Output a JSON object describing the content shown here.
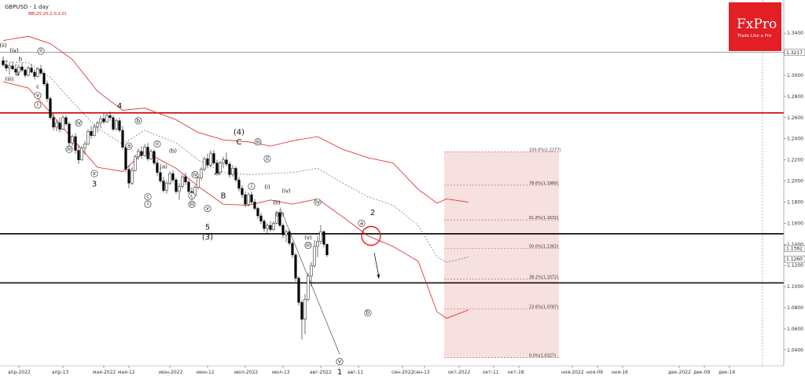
{
  "header": {
    "symbol": "GBPUSD - 1 day",
    "indicator": "BB(20,20,2.0,2,0)"
  },
  "logo": {
    "brand": "FxPro",
    "tagline": "Trade Like a Pro",
    "color": "#e31e24"
  },
  "price_labels": {
    "top_level": "1.3217",
    "current_bid": "1.1362",
    "current_low": "1.1260"
  },
  "fib_box_color": "#f4d6d6",
  "colors": {
    "bull": "#ffffff",
    "bear": "#000000",
    "bollinger": "#e02020",
    "resistance": "#cc0000",
    "support": "#000000",
    "circle": "#e02020"
  },
  "chart_data": {
    "type": "candlestick",
    "title": "GBPUSD - 1 day",
    "indicator": "BB(20,20,2.0,2,0)",
    "y_ticks": [
      "1.3400",
      "1.3200",
      "1.3000",
      "1.2800",
      "1.2600",
      "1.2400",
      "1.2200",
      "1.2000",
      "1.1800",
      "1.1600",
      "1.1400",
      "1.1200",
      "1.1000",
      "1.0800",
      "1.0600",
      "1.0400"
    ],
    "x_ticks": [
      "апр-2022",
      "апр-13",
      "мая-2022",
      "мая-12",
      "июн-2022",
      "июн-12",
      "июл-2022",
      "июл-13",
      "авг-2022",
      "авг-11",
      "сен-2022",
      "сен-13",
      "окт-2022",
      "окт-11",
      "окт-18",
      "ноя-2022",
      "ноя-09",
      "ноя-16",
      "дек-2022",
      "дек-09",
      "дек-16"
    ],
    "ylim": [
      1.025,
      1.355
    ],
    "horizontal_lines": [
      {
        "price": 1.3217,
        "style": "thin",
        "color": "#555555"
      },
      {
        "price": 1.2645,
        "style": "thick",
        "color": "#cc0000"
      },
      {
        "price": 1.15,
        "style": "thick",
        "color": "#000000"
      },
      {
        "price": 1.1035,
        "style": "thick",
        "color": "#000000"
      }
    ],
    "fibonacci": [
      {
        "label": "100.0%(1.2277)",
        "price": 1.2277
      },
      {
        "label": "78.6%(1.1960)",
        "price": 1.196
      },
      {
        "label": "61.8%(1.1632)",
        "price": 1.1632
      },
      {
        "label": "50.0%(1.1362)",
        "price": 1.1362
      },
      {
        "label": "38.2%(1.1072)",
        "price": 1.1072
      },
      {
        "label": "23.6%(1.0787)",
        "price": 1.0787
      },
      {
        "label": "0.0%(1.0327)",
        "price": 1.0327
      }
    ],
    "candles": [
      [
        1.314,
        1.318,
        1.308,
        1.31
      ],
      [
        1.31,
        1.315,
        1.304,
        1.307
      ],
      [
        1.307,
        1.312,
        1.301,
        1.309
      ],
      [
        1.309,
        1.313,
        1.305,
        1.306
      ],
      [
        1.306,
        1.311,
        1.3,
        1.303
      ],
      [
        1.303,
        1.31,
        1.3,
        1.308
      ],
      [
        1.308,
        1.312,
        1.303,
        1.305
      ],
      [
        1.305,
        1.307,
        1.298,
        1.3
      ],
      [
        1.3,
        1.309,
        1.299,
        1.307
      ],
      [
        1.307,
        1.311,
        1.302,
        1.303
      ],
      [
        1.303,
        1.306,
        1.296,
        1.299
      ],
      [
        1.299,
        1.308,
        1.298,
        1.306
      ],
      [
        1.306,
        1.31,
        1.3,
        1.302
      ],
      [
        1.302,
        1.304,
        1.29,
        1.292
      ],
      [
        1.292,
        1.295,
        1.275,
        1.278
      ],
      [
        1.278,
        1.28,
        1.258,
        1.26
      ],
      [
        1.26,
        1.264,
        1.248,
        1.251
      ],
      [
        1.251,
        1.258,
        1.247,
        1.255
      ],
      [
        1.255,
        1.26,
        1.246,
        1.249
      ],
      [
        1.249,
        1.262,
        1.248,
        1.26
      ],
      [
        1.26,
        1.262,
        1.252,
        1.254
      ],
      [
        1.254,
        1.256,
        1.233,
        1.236
      ],
      [
        1.236,
        1.244,
        1.233,
        1.242
      ],
      [
        1.242,
        1.245,
        1.226,
        1.229
      ],
      [
        1.229,
        1.234,
        1.216,
        1.22
      ],
      [
        1.22,
        1.233,
        1.219,
        1.231
      ],
      [
        1.231,
        1.238,
        1.225,
        1.235
      ],
      [
        1.235,
        1.249,
        1.234,
        1.247
      ],
      [
        1.247,
        1.252,
        1.24,
        1.243
      ],
      [
        1.243,
        1.254,
        1.242,
        1.251
      ],
      [
        1.251,
        1.257,
        1.246,
        1.255
      ],
      [
        1.255,
        1.262,
        1.25,
        1.259
      ],
      [
        1.259,
        1.264,
        1.254,
        1.256
      ],
      [
        1.256,
        1.264,
        1.255,
        1.262
      ],
      [
        1.262,
        1.266,
        1.257,
        1.26
      ],
      [
        1.26,
        1.262,
        1.247,
        1.249
      ],
      [
        1.249,
        1.259,
        1.248,
        1.257
      ],
      [
        1.257,
        1.26,
        1.246,
        1.248
      ],
      [
        1.248,
        1.252,
        1.23,
        1.232
      ],
      [
        1.232,
        1.235,
        1.208,
        1.211
      ],
      [
        1.211,
        1.215,
        1.193,
        1.198
      ],
      [
        1.198,
        1.213,
        1.196,
        1.21
      ],
      [
        1.21,
        1.225,
        1.209,
        1.223
      ],
      [
        1.223,
        1.231,
        1.22,
        1.228
      ],
      [
        1.228,
        1.233,
        1.221,
        1.224
      ],
      [
        1.224,
        1.235,
        1.223,
        1.232
      ],
      [
        1.232,
        1.236,
        1.219,
        1.221
      ],
      [
        1.221,
        1.23,
        1.22,
        1.228
      ],
      [
        1.228,
        1.23,
        1.215,
        1.217
      ],
      [
        1.217,
        1.22,
        1.205,
        1.208
      ],
      [
        1.208,
        1.213,
        1.198,
        1.2
      ],
      [
        1.2,
        1.204,
        1.189,
        1.191
      ],
      [
        1.191,
        1.2,
        1.188,
        1.198
      ],
      [
        1.198,
        1.209,
        1.196,
        1.207
      ],
      [
        1.207,
        1.21,
        1.199,
        1.201
      ],
      [
        1.201,
        1.203,
        1.188,
        1.19
      ],
      [
        1.19,
        1.198,
        1.182,
        1.195
      ],
      [
        1.195,
        1.206,
        1.193,
        1.204
      ],
      [
        1.204,
        1.208,
        1.196,
        1.199
      ],
      [
        1.199,
        1.201,
        1.188,
        1.19
      ],
      [
        1.19,
        1.194,
        1.182,
        1.186
      ],
      [
        1.186,
        1.196,
        1.185,
        1.194
      ],
      [
        1.194,
        1.205,
        1.192,
        1.203
      ],
      [
        1.203,
        1.213,
        1.201,
        1.211
      ],
      [
        1.211,
        1.223,
        1.209,
        1.221
      ],
      [
        1.221,
        1.226,
        1.212,
        1.215
      ],
      [
        1.215,
        1.229,
        1.213,
        1.226
      ],
      [
        1.226,
        1.229,
        1.215,
        1.217
      ],
      [
        1.217,
        1.22,
        1.205,
        1.208
      ],
      [
        1.208,
        1.219,
        1.206,
        1.217
      ],
      [
        1.217,
        1.223,
        1.212,
        1.22
      ],
      [
        1.22,
        1.227,
        1.214,
        1.216
      ],
      [
        1.216,
        1.218,
        1.203,
        1.206
      ],
      [
        1.206,
        1.215,
        1.204,
        1.212
      ],
      [
        1.212,
        1.214,
        1.199,
        1.201
      ],
      [
        1.201,
        1.204,
        1.19,
        1.193
      ],
      [
        1.193,
        1.196,
        1.184,
        1.187
      ],
      [
        1.187,
        1.19,
        1.175,
        1.178
      ],
      [
        1.178,
        1.189,
        1.176,
        1.187
      ],
      [
        1.187,
        1.19,
        1.178,
        1.18
      ],
      [
        1.18,
        1.183,
        1.172,
        1.174
      ],
      [
        1.174,
        1.176,
        1.164,
        1.167
      ],
      [
        1.167,
        1.17,
        1.159,
        1.162
      ],
      [
        1.162,
        1.164,
        1.152,
        1.155
      ],
      [
        1.155,
        1.16,
        1.15,
        1.158
      ],
      [
        1.158,
        1.162,
        1.152,
        1.154
      ],
      [
        1.154,
        1.162,
        1.153,
        1.16
      ],
      [
        1.16,
        1.172,
        1.159,
        1.17
      ],
      [
        1.17,
        1.173,
        1.156,
        1.158
      ],
      [
        1.158,
        1.16,
        1.146,
        1.149
      ],
      [
        1.149,
        1.154,
        1.142,
        1.152
      ],
      [
        1.152,
        1.154,
        1.139,
        1.141
      ],
      [
        1.141,
        1.143,
        1.127,
        1.13
      ],
      [
        1.13,
        1.132,
        1.105,
        1.108
      ],
      [
        1.108,
        1.11,
        1.082,
        1.085
      ],
      [
        1.085,
        1.087,
        1.05,
        1.069
      ],
      [
        1.069,
        1.093,
        1.055,
        1.088
      ],
      [
        1.088,
        1.113,
        1.086,
        1.11
      ],
      [
        1.11,
        1.123,
        1.1,
        1.12
      ],
      [
        1.12,
        1.144,
        1.118,
        1.138
      ],
      [
        1.138,
        1.148,
        1.128,
        1.143
      ],
      [
        1.143,
        1.158,
        1.14,
        1.152
      ],
      [
        1.152,
        1.153,
        1.137,
        1.14
      ],
      [
        1.14,
        1.141,
        1.128,
        1.13
      ]
    ],
    "bollinger_upper": [
      [
        0,
        1.333
      ],
      [
        8,
        1.337
      ],
      [
        15,
        1.33
      ],
      [
        22,
        1.315
      ],
      [
        30,
        1.285
      ],
      [
        38,
        1.267
      ],
      [
        45,
        1.269
      ],
      [
        55,
        1.258
      ],
      [
        62,
        1.246
      ],
      [
        70,
        1.239
      ],
      [
        78,
        1.237
      ],
      [
        85,
        1.233
      ],
      [
        92,
        1.238
      ],
      [
        100,
        1.242
      ],
      [
        108,
        1.23
      ],
      [
        116,
        1.222
      ],
      [
        124,
        1.217
      ],
      [
        132,
        1.192
      ],
      [
        138,
        1.179
      ],
      [
        141,
        1.183
      ],
      [
        148,
        1.18
      ]
    ],
    "bollinger_lower": [
      [
        0,
        1.294
      ],
      [
        8,
        1.288
      ],
      [
        15,
        1.265
      ],
      [
        22,
        1.24
      ],
      [
        30,
        1.213
      ],
      [
        38,
        1.209
      ],
      [
        45,
        1.228
      ],
      [
        55,
        1.212
      ],
      [
        62,
        1.195
      ],
      [
        70,
        1.178
      ],
      [
        78,
        1.177
      ],
      [
        85,
        1.182
      ],
      [
        92,
        1.178
      ],
      [
        100,
        1.183
      ],
      [
        108,
        1.166
      ],
      [
        116,
        1.148
      ],
      [
        124,
        1.138
      ],
      [
        132,
        1.124
      ],
      [
        138,
        1.076
      ],
      [
        141,
        1.07
      ],
      [
        148,
        1.078
      ]
    ],
    "bollinger_mid": [
      [
        0,
        1.313
      ],
      [
        8,
        1.312
      ],
      [
        15,
        1.298
      ],
      [
        22,
        1.275
      ],
      [
        30,
        1.25
      ],
      [
        38,
        1.235
      ],
      [
        45,
        1.248
      ],
      [
        55,
        1.236
      ],
      [
        62,
        1.22
      ],
      [
        70,
        1.208
      ],
      [
        78,
        1.206
      ],
      [
        85,
        1.207
      ],
      [
        92,
        1.208
      ],
      [
        100,
        1.212
      ],
      [
        108,
        1.198
      ],
      [
        116,
        1.185
      ],
      [
        124,
        1.177
      ],
      [
        132,
        1.158
      ],
      [
        138,
        1.128
      ],
      [
        141,
        1.123
      ],
      [
        148,
        1.128
      ]
    ],
    "waves": [
      {
        "label": "(ii)",
        "idx": 0,
        "price": 1.329,
        "circled": false,
        "size": "sm"
      },
      {
        "label": "b",
        "idx": 1,
        "price": 1.309,
        "circled": false,
        "size": "sm"
      },
      {
        "label": "(iii)",
        "idx": 2,
        "price": 1.297,
        "circled": false,
        "size": "sm"
      },
      {
        "label": "(iv)",
        "idx": 3.5,
        "price": 1.324,
        "circled": false,
        "size": "sm"
      },
      {
        "label": "a",
        "idx": 4.5,
        "price": 1.302,
        "circled": false,
        "size": "sm"
      },
      {
        "label": "b",
        "idx": 5.5,
        "price": 1.316,
        "circled": false,
        "size": "sm"
      },
      {
        "label": "c",
        "idx": 11,
        "price": 1.29,
        "circled": false,
        "size": "sm"
      },
      {
        "label": "v",
        "idx": 11,
        "price": 1.281,
        "circled": true,
        "size": "sm"
      },
      {
        "label": "i",
        "idx": 11,
        "price": 1.272,
        "circled": true,
        "size": "sm"
      },
      {
        "label": "ii",
        "idx": 12,
        "price": 1.323,
        "circled": true,
        "size": "sm"
      },
      {
        "label": "iv",
        "idx": 24,
        "price": 1.255,
        "circled": true,
        "size": "sm"
      },
      {
        "label": "iii",
        "idx": 21,
        "price": 1.23,
        "circled": true,
        "size": "sm"
      },
      {
        "label": "v",
        "idx": 29,
        "price": 1.207,
        "circled": true,
        "size": "sm"
      },
      {
        "label": "3",
        "idx": 29,
        "price": 1.197,
        "circled": false,
        "size": "big"
      },
      {
        "label": "4",
        "idx": 37,
        "price": 1.271,
        "circled": false,
        "size": "big"
      },
      {
        "label": "b",
        "idx": 43,
        "price": 1.257,
        "circled": true,
        "size": "sm"
      },
      {
        "label": "a",
        "idx": 40,
        "price": 1.233,
        "circled": true,
        "size": "sm"
      },
      {
        "label": "c",
        "idx": 46,
        "price": 1.185,
        "circled": true,
        "size": "sm"
      },
      {
        "label": "ii",
        "idx": 49,
        "price": 1.235,
        "circled": true,
        "size": "sm"
      },
      {
        "label": "i",
        "idx": 46,
        "price": 1.178,
        "circled": true,
        "size": "sm"
      },
      {
        "label": "(a)",
        "idx": 51,
        "price": 1.214,
        "circled": false,
        "size": "sm"
      },
      {
        "label": "(b)",
        "idx": 54,
        "price": 1.229,
        "circled": false,
        "size": "sm"
      },
      {
        "label": "iv",
        "idx": 61,
        "price": 1.206,
        "circled": true,
        "size": "sm"
      },
      {
        "label": "c",
        "idx": 60,
        "price": 1.186,
        "circled": true,
        "size": "sm"
      },
      {
        "label": "iii",
        "idx": 60,
        "price": 1.178,
        "circled": true,
        "size": "sm"
      },
      {
        "label": "v",
        "idx": 65,
        "price": 1.174,
        "circled": true,
        "size": "sm"
      },
      {
        "label": "5",
        "idx": 65,
        "price": 1.156,
        "circled": false,
        "size": "big"
      },
      {
        "label": "(3)",
        "idx": 65,
        "price": 1.147,
        "circled": false,
        "size": "big"
      },
      {
        "label": "A",
        "idx": 68,
        "price": 1.208,
        "circled": false,
        "size": "big"
      },
      {
        "label": "B",
        "idx": 70,
        "price": 1.186,
        "circled": false,
        "size": "big"
      },
      {
        "label": "(4)",
        "idx": 75,
        "price": 1.246,
        "circled": false,
        "size": "big"
      },
      {
        "label": "C",
        "idx": 75,
        "price": 1.237,
        "circled": false,
        "size": "big"
      },
      {
        "label": "iii",
        "idx": 81,
        "price": 1.237,
        "circled": true,
        "size": "sm"
      },
      {
        "label": "ii",
        "idx": 84,
        "price": 1.221,
        "circled": true,
        "size": "sm"
      },
      {
        "label": "i",
        "idx": 79,
        "price": 1.195,
        "circled": true,
        "size": "sm"
      },
      {
        "label": "(i)",
        "idx": 84,
        "price": 1.195,
        "circled": false,
        "size": "sm"
      },
      {
        "label": "(ii)",
        "idx": 87,
        "price": 1.18,
        "circled": false,
        "size": "sm"
      },
      {
        "label": "(iv)",
        "idx": 90,
        "price": 1.191,
        "circled": false,
        "size": "sm"
      },
      {
        "label": "(iii)",
        "idx": 88,
        "price": 1.169,
        "circled": false,
        "size": "sm"
      },
      {
        "label": "iv",
        "idx": 100,
        "price": 1.18,
        "circled": true,
        "size": "sm"
      },
      {
        "label": "(v)",
        "idx": 97,
        "price": 1.147,
        "circled": false,
        "size": "sm"
      },
      {
        "label": "iii",
        "idx": 97,
        "price": 1.139,
        "circled": true,
        "size": "sm"
      },
      {
        "label": "v",
        "idx": 107,
        "price": 1.029,
        "circled": true,
        "size": "sm"
      },
      {
        "label": "1",
        "idx": 107,
        "price": 1.019,
        "circled": false,
        "size": "big"
      },
      {
        "label": "a",
        "idx": 114,
        "price": 1.16,
        "circled": true,
        "size": "sm"
      },
      {
        "label": "2",
        "idx": 117.5,
        "price": 1.17,
        "circled": false,
        "size": "big"
      },
      {
        "label": "b",
        "idx": 116,
        "price": 1.075,
        "circled": true,
        "size": "sm"
      }
    ]
  }
}
